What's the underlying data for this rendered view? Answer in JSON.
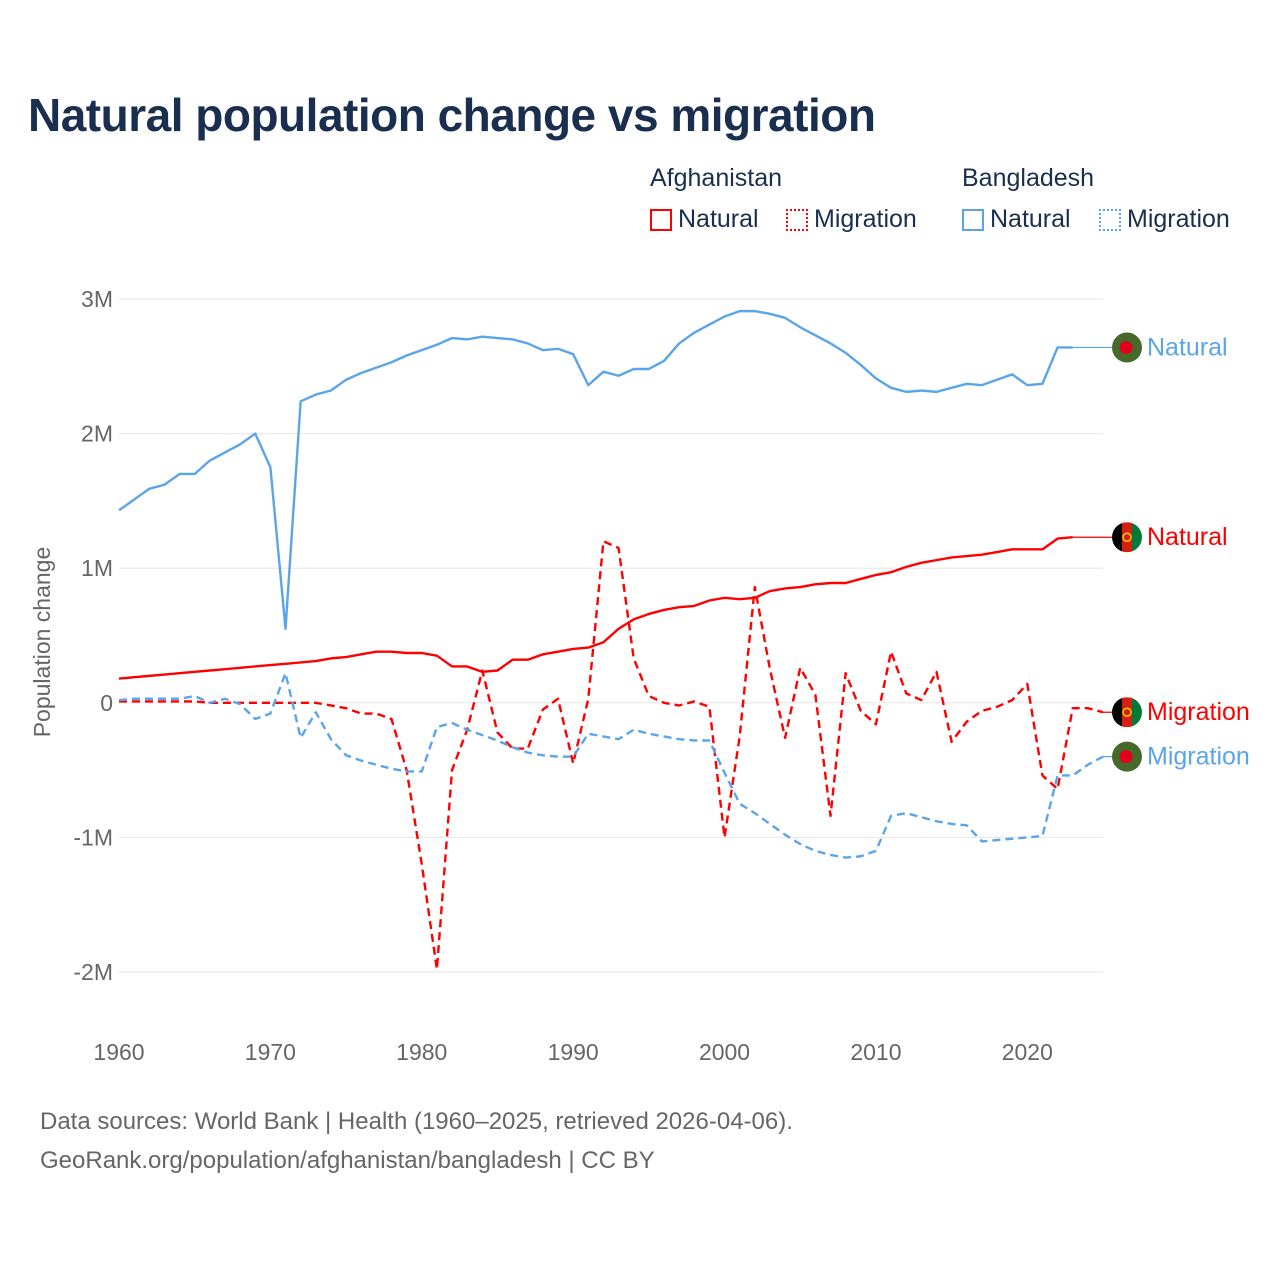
{
  "title": "Natural population change vs migration",
  "legend": {
    "groups": [
      {
        "name": "Afghanistan",
        "items": [
          "Natural",
          "Migration"
        ],
        "color": "#ff0000"
      },
      {
        "name": "Bangladesh",
        "items": [
          "Natural",
          "Migration"
        ],
        "color": "#5aa5ea"
      }
    ]
  },
  "footer": {
    "line1": "Data sources: World Bank | Health (1960–2025, retrieved 2026-04-06).",
    "line2": "GeoRank.org/population/afghanistan/bangladesh | CC BY"
  },
  "chart_data": {
    "type": "line",
    "title": "Natural population change vs migration",
    "xlabel": "",
    "ylabel": "Population change",
    "xlim": [
      1960,
      2025
    ],
    "ylim": [
      -2000000,
      3000000
    ],
    "x_ticks": [
      "1960",
      "1970",
      "1980",
      "1990",
      "2000",
      "2010",
      "2020"
    ],
    "y_ticks": [
      {
        "v": 3000000,
        "label": "3M"
      },
      {
        "v": 2000000,
        "label": "2M"
      },
      {
        "v": 1000000,
        "label": "1M"
      },
      {
        "v": 0,
        "label": "0"
      },
      {
        "v": -1000000,
        "label": "-1M"
      },
      {
        "v": -2000000,
        "label": "-2M"
      }
    ],
    "grid": true,
    "start_year": 1960,
    "unit": "millions",
    "series": [
      {
        "name": "Bangladesh Natural",
        "end_label": "Natural",
        "country": "Bangladesh",
        "color": "#5aa5ea",
        "dashed": false,
        "values": [
          1.43,
          1.51,
          1.59,
          1.62,
          1.7,
          1.7,
          1.8,
          1.86,
          1.92,
          2.0,
          1.75,
          0.55,
          2.24,
          2.29,
          2.32,
          2.4,
          2.45,
          2.49,
          2.53,
          2.58,
          2.62,
          2.66,
          2.71,
          2.7,
          2.72,
          2.71,
          2.7,
          2.67,
          2.62,
          2.63,
          2.59,
          2.36,
          2.46,
          2.43,
          2.48,
          2.48,
          2.54,
          2.67,
          2.75,
          2.81,
          2.87,
          2.91,
          2.91,
          2.89,
          2.86,
          2.79,
          2.73,
          2.67,
          2.6,
          2.51,
          2.41,
          2.34,
          2.31,
          2.32,
          2.31,
          2.34,
          2.37,
          2.36,
          2.4,
          2.44,
          2.36,
          2.37,
          2.64,
          2.64,
          null,
          null
        ]
      },
      {
        "name": "Afghanistan Natural",
        "end_label": "Natural",
        "country": "Afghanistan",
        "color": "#ff0000",
        "dashed": false,
        "values": [
          0.18,
          0.19,
          0.2,
          0.21,
          0.22,
          0.23,
          0.24,
          0.25,
          0.26,
          0.27,
          0.28,
          0.29,
          0.3,
          0.31,
          0.33,
          0.34,
          0.36,
          0.38,
          0.38,
          0.37,
          0.37,
          0.35,
          0.27,
          0.27,
          0.23,
          0.24,
          0.32,
          0.32,
          0.36,
          0.38,
          0.4,
          0.41,
          0.45,
          0.55,
          0.62,
          0.66,
          0.69,
          0.71,
          0.72,
          0.76,
          0.78,
          0.77,
          0.78,
          0.83,
          0.85,
          0.86,
          0.88,
          0.89,
          0.89,
          0.92,
          0.95,
          0.97,
          1.01,
          1.04,
          1.06,
          1.08,
          1.09,
          1.1,
          1.12,
          1.14,
          1.14,
          1.14,
          1.22,
          1.23,
          null,
          null
        ]
      },
      {
        "name": "Afghanistan Migration",
        "end_label": "Migration",
        "country": "Afghanistan",
        "color": "#ff0000",
        "dashed": true,
        "values": [
          0.01,
          0.01,
          0.01,
          0.01,
          0.01,
          0.01,
          0.0,
          0.0,
          0.0,
          0.0,
          0.0,
          0.0,
          0.0,
          0.0,
          -0.02,
          -0.04,
          -0.08,
          -0.08,
          -0.12,
          -0.5,
          -1.2,
          -1.98,
          -0.5,
          -0.2,
          0.24,
          -0.22,
          -0.34,
          -0.34,
          -0.05,
          0.03,
          -0.45,
          0.03,
          1.2,
          1.15,
          0.33,
          0.05,
          0.0,
          -0.02,
          0.01,
          -0.03,
          -1.0,
          -0.25,
          0.86,
          0.25,
          -0.26,
          0.26,
          0.06,
          -0.84,
          0.22,
          -0.06,
          -0.16,
          0.38,
          0.07,
          0.02,
          0.23,
          -0.29,
          -0.14,
          -0.06,
          -0.03,
          0.02,
          0.14,
          -0.54,
          -0.64,
          -0.04,
          -0.04,
          -0.07
        ]
      },
      {
        "name": "Bangladesh Migration",
        "end_label": "Migration",
        "country": "Bangladesh",
        "color": "#5aa5ea",
        "dashed": true,
        "values": [
          0.02,
          0.03,
          0.03,
          0.03,
          0.03,
          0.05,
          0.0,
          0.03,
          -0.01,
          -0.12,
          -0.08,
          0.22,
          -0.26,
          -0.07,
          -0.27,
          -0.39,
          -0.43,
          -0.46,
          -0.49,
          -0.51,
          -0.51,
          -0.18,
          -0.15,
          -0.2,
          -0.24,
          -0.28,
          -0.33,
          -0.37,
          -0.39,
          -0.4,
          -0.4,
          -0.23,
          -0.25,
          -0.27,
          -0.2,
          -0.23,
          -0.25,
          -0.27,
          -0.28,
          -0.28,
          -0.52,
          -0.75,
          -0.82,
          -0.9,
          -0.98,
          -1.05,
          -1.1,
          -1.13,
          -1.15,
          -1.14,
          -1.1,
          -0.84,
          -0.82,
          -0.85,
          -0.88,
          -0.9,
          -0.91,
          -1.03,
          -1.02,
          -1.01,
          -1.0,
          -0.99,
          -0.54,
          -0.54,
          -0.46,
          -0.4
        ]
      }
    ]
  }
}
